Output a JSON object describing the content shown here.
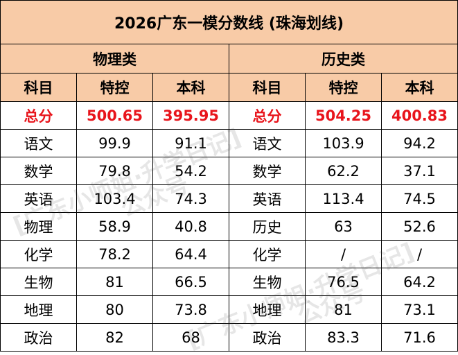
{
  "title": "2026广东一模分数线 (珠海划线)",
  "groups": [
    "物理类",
    "历史类"
  ],
  "columns": [
    "科目",
    "特控",
    "本科",
    "科目",
    "特控",
    "本科"
  ],
  "rows": [
    [
      "总分",
      "500.65",
      "395.95",
      "总分",
      "504.25",
      "400.83"
    ],
    [
      "语文",
      "99.9",
      "91.1",
      "语文",
      "103.9",
      "94.2"
    ],
    [
      "数学",
      "79.8",
      "54.2",
      "数学",
      "62.2",
      "37.1"
    ],
    [
      "英语",
      "103.4",
      "74.3",
      "英语",
      "113.4",
      "74.5"
    ],
    [
      "物理",
      "58.9",
      "40.8",
      "历史",
      "63",
      "52.6"
    ],
    [
      "化学",
      "78.2",
      "64.4",
      "化学",
      "/",
      "/"
    ],
    [
      "生物",
      "81",
      "66.5",
      "生物",
      "76.5",
      "64.2"
    ],
    [
      "地理",
      "80",
      "73.8",
      "地理",
      "81",
      "73.1"
    ],
    [
      "政治",
      "82",
      "68",
      "政治",
      "83.3",
      "71.6"
    ]
  ],
  "watermark": [
    "[广东小师姐·升学日记]",
    "公众号"
  ]
}
